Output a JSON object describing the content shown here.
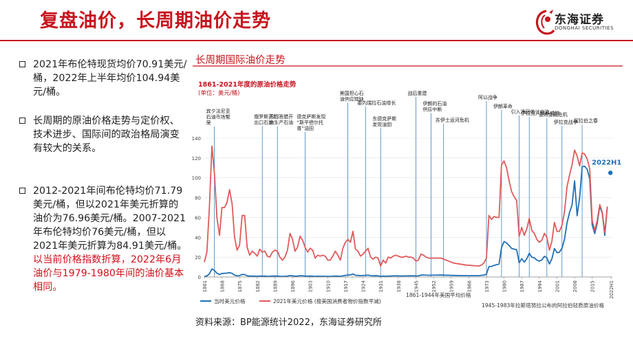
{
  "header": {
    "title": "复盘油价，长周期油价走势"
  },
  "logo": {
    "cn": "东海证券",
    "en": "DONGHAI SECURITIES",
    "icon": "dragon-logo-icon"
  },
  "bullets": [
    {
      "text": "2021年布伦特现货均价70.91美元/桶，2022年上半年均价104.94美元/桶。",
      "highlight": ""
    },
    {
      "text": "长周期的原油价格走势与定价权、技术进步、国际间的政治格局演变有较大的关系。",
      "highlight": ""
    },
    {
      "text": "2012-2021年间布伦特均价71.79美元/桶，但以2021年美元折算的油价为76.96美元/桶。2007-2021年布伦特均价76美元/桶，但以2021年美元折算为84.91美元/桶。",
      "highlight": "以当前价格指数折算，2022年6月油价与1979-1980年间的油价基本相同。"
    }
  ],
  "panel": {
    "title": "长周期国际油价走势",
    "source": "资料来源：BP能源统计2022，东海证券研究所"
  },
  "chart_data": {
    "type": "line",
    "title": "1861-2021年度的原油价格走势",
    "subtitle": "(单位：美元/桶)",
    "xlabel": "",
    "ylabel": "",
    "ylim": [
      0,
      140
    ],
    "yticks": [
      0,
      20,
      40,
      60,
      80,
      100,
      120,
      140
    ],
    "xlim": [
      1861,
      2023
    ],
    "xticks": [
      1861,
      1868,
      1875,
      1882,
      1889,
      1896,
      1903,
      1910,
      1917,
      1924,
      1931,
      1938,
      1945,
      1952,
      1959,
      1966,
      1973,
      1980,
      1987,
      1994,
      2001,
      2008,
      2015,
      "2022H1"
    ],
    "grid": true,
    "legend_position": "bottom",
    "colors": {
      "nominal": "#1f6fb5",
      "real": "#e05a5a",
      "events": "#1f6fb5"
    },
    "note_left": "1861-1944年美国平均价格",
    "note_right": "1945-1983年拉斯塔努拉公布的阿拉伯轻质原油价格",
    "callout": {
      "label": "2022H1",
      "x": 2022.5,
      "y": 105
    },
    "series": [
      {
        "name": "当时美元价格",
        "key": "nominal",
        "x": [
          1861,
          1862,
          1863,
          1864,
          1865,
          1866,
          1867,
          1868,
          1869,
          1870,
          1871,
          1872,
          1873,
          1874,
          1875,
          1876,
          1877,
          1878,
          1879,
          1880,
          1881,
          1882,
          1883,
          1884,
          1885,
          1886,
          1887,
          1888,
          1889,
          1890,
          1891,
          1892,
          1893,
          1894,
          1895,
          1896,
          1897,
          1898,
          1899,
          1900,
          1901,
          1902,
          1903,
          1904,
          1905,
          1906,
          1907,
          1908,
          1909,
          1910,
          1911,
          1912,
          1913,
          1914,
          1915,
          1916,
          1917,
          1918,
          1919,
          1920,
          1921,
          1922,
          1923,
          1924,
          1925,
          1926,
          1927,
          1928,
          1929,
          1930,
          1931,
          1932,
          1933,
          1934,
          1935,
          1936,
          1937,
          1938,
          1939,
          1940,
          1941,
          1942,
          1943,
          1944,
          1945,
          1946,
          1947,
          1948,
          1949,
          1950,
          1955,
          1960,
          1965,
          1970,
          1971,
          1972,
          1973,
          1974,
          1975,
          1976,
          1977,
          1978,
          1979,
          1980,
          1981,
          1982,
          1983,
          1984,
          1985,
          1986,
          1987,
          1988,
          1989,
          1990,
          1991,
          1992,
          1993,
          1994,
          1995,
          1996,
          1997,
          1998,
          1999,
          2000,
          2001,
          2002,
          2003,
          2004,
          2005,
          2006,
          2007,
          2008,
          2009,
          2010,
          2011,
          2012,
          2013,
          2014,
          2015,
          2016,
          2017,
          2018,
          2019,
          2020,
          2021
        ],
        "y": [
          0.5,
          1.05,
          3.15,
          8.06,
          6.59,
          3.74,
          2.41,
          3.63,
          3.64,
          3.86,
          4.34,
          3.64,
          1.83,
          1.17,
          1.35,
          2.56,
          2.42,
          1.19,
          0.86,
          0.95,
          0.86,
          0.78,
          1.0,
          0.84,
          0.88,
          0.71,
          0.67,
          0.88,
          0.94,
          0.87,
          0.67,
          0.56,
          0.64,
          0.84,
          1.36,
          1.18,
          0.79,
          0.91,
          1.29,
          1.19,
          0.96,
          0.8,
          0.94,
          0.86,
          0.62,
          0.73,
          0.72,
          0.72,
          0.7,
          0.61,
          0.61,
          0.74,
          0.95,
          0.81,
          0.64,
          1.1,
          1.56,
          1.98,
          2.01,
          3.07,
          1.73,
          1.61,
          1.34,
          1.43,
          1.68,
          1.88,
          1.3,
          1.17,
          1.27,
          1.19,
          0.65,
          0.87,
          0.67,
          1.0,
          0.97,
          1.09,
          1.18,
          1.13,
          1.02,
          1.02,
          1.14,
          1.19,
          1.2,
          1.21,
          1.05,
          1.12,
          1.9,
          1.99,
          1.78,
          1.71,
          1.93,
          1.5,
          1.33,
          1.3,
          1.65,
          1.9,
          2.83,
          10.41,
          10.7,
          11.63,
          12.38,
          13.03,
          29.75,
          35.69,
          34.28,
          31.76,
          28.77,
          28.06,
          27.53,
          14.38,
          18.42,
          14.96,
          18.2,
          23.81,
          20.05,
          19.37,
          17.07,
          15.98,
          17.18,
          20.8,
          19.3,
          13.11,
          18.25,
          28.66,
          24.46,
          24.99,
          28.85,
          38.26,
          54.57,
          65.16,
          72.44,
          96.94,
          61.74,
          79.61,
          111.26,
          111.67,
          108.66,
          98.95,
          52.39,
          43.73,
          54.19,
          71.31,
          64.21,
          41.84,
          70.91
        ]
      },
      {
        "name": "2021年美元价格 (按美国消费者物价指数平减)",
        "key": "real",
        "x": [
          1861,
          1862,
          1863,
          1864,
          1865,
          1866,
          1867,
          1868,
          1869,
          1870,
          1871,
          1872,
          1873,
          1874,
          1875,
          1876,
          1877,
          1878,
          1879,
          1880,
          1881,
          1882,
          1883,
          1884,
          1885,
          1886,
          1887,
          1888,
          1889,
          1890,
          1891,
          1892,
          1893,
          1894,
          1895,
          1896,
          1897,
          1898,
          1899,
          1900,
          1901,
          1902,
          1903,
          1904,
          1905,
          1906,
          1907,
          1908,
          1909,
          1910,
          1911,
          1912,
          1913,
          1914,
          1915,
          1916,
          1917,
          1918,
          1919,
          1920,
          1921,
          1922,
          1923,
          1924,
          1925,
          1926,
          1927,
          1928,
          1929,
          1930,
          1931,
          1932,
          1933,
          1934,
          1935,
          1936,
          1937,
          1938,
          1939,
          1940,
          1941,
          1942,
          1943,
          1944,
          1945,
          1946,
          1947,
          1948,
          1949,
          1950,
          1955,
          1960,
          1965,
          1970,
          1971,
          1972,
          1973,
          1974,
          1975,
          1976,
          1977,
          1978,
          1979,
          1980,
          1981,
          1982,
          1983,
          1984,
          1985,
          1986,
          1987,
          1988,
          1989,
          1990,
          1991,
          1992,
          1993,
          1994,
          1995,
          1996,
          1997,
          1998,
          1999,
          2000,
          2001,
          2002,
          2003,
          2004,
          2005,
          2006,
          2007,
          2008,
          2009,
          2010,
          2011,
          2012,
          2013,
          2014,
          2015,
          2016,
          2017,
          2018,
          2019,
          2020,
          2021
        ],
        "y": [
          15,
          25,
          70,
          132,
          105,
          60,
          42,
          70,
          70,
          75,
          88,
          74,
          40,
          27,
          32,
          62,
          62,
          30,
          22,
          26,
          24,
          21,
          28,
          25,
          26,
          21,
          20,
          25,
          27,
          26,
          20,
          17,
          20,
          27,
          44,
          38,
          26,
          30,
          41,
          37,
          30,
          25,
          29,
          27,
          19,
          22,
          21,
          22,
          21,
          17,
          17,
          21,
          26,
          22,
          17,
          29,
          35,
          38,
          35,
          46,
          28,
          26,
          21,
          23,
          26,
          29,
          20,
          18,
          20,
          19,
          11,
          17,
          14,
          20,
          19,
          21,
          22,
          21,
          20,
          20,
          21,
          20,
          20,
          19,
          16,
          17,
          23,
          22,
          20,
          19,
          19,
          14,
          12,
          11,
          12,
          14,
          19,
          62,
          58,
          61,
          60,
          60,
          113,
          117,
          110,
          97,
          86,
          81,
          77,
          41,
          50,
          42,
          48,
          59,
          47,
          44,
          38,
          35,
          37,
          44,
          40,
          27,
          36,
          55,
          46,
          46,
          52,
          66,
          91,
          103,
          113,
          128,
          122,
          112,
          125,
          124,
          119,
          109,
          57,
          47,
          57,
          73,
          65,
          45,
          71
        ]
      }
    ],
    "events": [
      {
        "label": "宾夕法尼亚石油市场繁荣",
        "year": 1865
      },
      {
        "label": "俄罗斯开始出口石油",
        "year": 1884
      },
      {
        "label": "苏门答腊开始生产石油",
        "year": 1890
      },
      {
        "label": "德克萨斯发现“斯平德尔托普”油田",
        "year": 1901
      },
      {
        "label": "美国担心石油供应短缺",
        "year": 1918
      },
      {
        "label": "委内瑞拉石油增长",
        "year": 1925
      },
      {
        "label": "东德克萨斯发现油田",
        "year": 1931
      },
      {
        "label": "战后重建",
        "year": 1945
      },
      {
        "label": "伊朗的石油供应中断",
        "year": 1951
      },
      {
        "label": "苏伊士运河危机",
        "year": 1956
      },
      {
        "label": "阿以战争",
        "year": 1973
      },
      {
        "label": "伊朗革命",
        "year": 1979
      },
      {
        "label": "引入净回值计价法",
        "year": 1986
      },
      {
        "label": "伊拉克入侵科威特",
        "year": 1990
      },
      {
        "label": "亚洲金融危机",
        "year": 1997
      },
      {
        "label": "伊拉克战争",
        "year": 2003
      },
      {
        "label": "阿拉伯之春",
        "year": 2011
      }
    ]
  }
}
